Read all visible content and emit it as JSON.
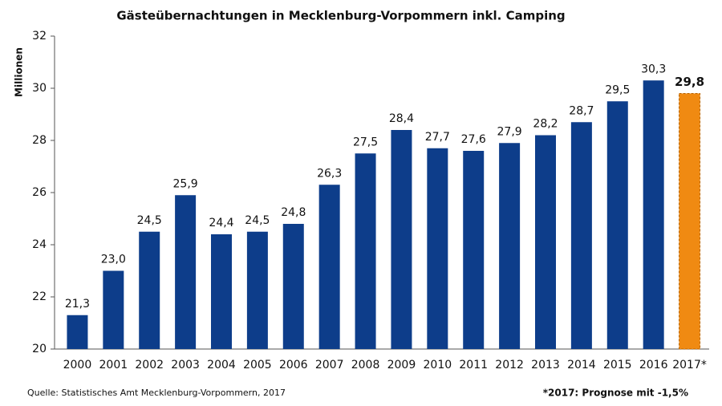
{
  "chart_data": {
    "type": "bar",
    "title": "Gästeübernachtungen  in Mecklenburg-Vorpommern inkl. Camping",
    "y_label": "Millionen",
    "categories": [
      "2000",
      "2001",
      "2002",
      "2003",
      "2004",
      "2005",
      "2006",
      "2007",
      "2008",
      "2009",
      "2010",
      "2011",
      "2012",
      "2013",
      "2014",
      "2015",
      "2016",
      "2017*"
    ],
    "values": [
      21.3,
      23.0,
      24.5,
      25.9,
      24.4,
      24.5,
      24.8,
      26.3,
      27.5,
      28.4,
      27.7,
      27.6,
      27.9,
      28.2,
      28.7,
      29.5,
      30.3,
      29.8
    ],
    "value_labels": [
      "21,3",
      "23,0",
      "24,5",
      "25,9",
      "24,4",
      "24,5",
      "24,8",
      "26,3",
      "27,5",
      "28,4",
      "27,7",
      "27,6",
      "27,9",
      "28,2",
      "28,7",
      "29,5",
      "30,3",
      "29,8"
    ],
    "colors": [
      "#0d3d8a",
      "#0d3d8a",
      "#0d3d8a",
      "#0d3d8a",
      "#0d3d8a",
      "#0d3d8a",
      "#0d3d8a",
      "#0d3d8a",
      "#0d3d8a",
      "#0d3d8a",
      "#0d3d8a",
      "#0d3d8a",
      "#0d3d8a",
      "#0d3d8a",
      "#0d3d8a",
      "#0d3d8a",
      "#0d3d8a",
      "#f08a12"
    ],
    "ylim": [
      20,
      32
    ],
    "yticks": [
      20,
      22,
      24,
      26,
      28,
      30,
      32
    ],
    "grid": false,
    "source": "Quelle: Statistisches Amt Mecklenburg-Vorpommern, 2017",
    "note": "*2017: Prognose mit -1,5%"
  }
}
